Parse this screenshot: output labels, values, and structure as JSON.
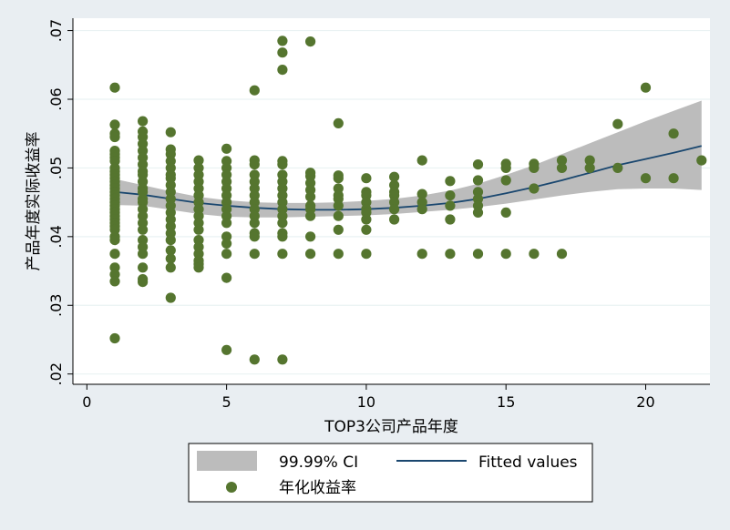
{
  "chart_data": {
    "type": "scatter",
    "xlabel": "TOP3公司产品年度",
    "ylabel": "产品年度实际收益率",
    "xlim": [
      -0.5,
      22.3
    ],
    "ylim": [
      0.0185,
      0.0718
    ],
    "x_ticks": [
      0,
      5,
      10,
      15,
      20
    ],
    "y_ticks": [
      0.02,
      0.03,
      0.04,
      0.05,
      0.06,
      0.07
    ],
    "y_tick_labels": [
      ".02",
      ".03",
      ".04",
      ".05",
      ".06",
      ".07"
    ],
    "grid": true,
    "legend_position": "bottom",
    "colors": {
      "ci_band": "#bcbcbc",
      "fit_line": "#1a476f",
      "points": "#55752f",
      "plot_bg": "#ffffff",
      "outer_bg": "#e9eef2"
    },
    "series": [
      {
        "name": "99.99% CI",
        "kind": "band",
        "x": [
          1,
          2,
          3,
          4,
          5,
          6,
          7,
          8,
          9,
          10,
          11,
          12,
          13,
          14,
          15,
          16,
          17,
          18,
          19,
          20,
          21,
          22
        ],
        "lower": [
          0.0446,
          0.0445,
          0.0439,
          0.0433,
          0.0429,
          0.0428,
          0.0428,
          0.0429,
          0.043,
          0.0431,
          0.0433,
          0.0436,
          0.0439,
          0.0443,
          0.0448,
          0.0454,
          0.046,
          0.0465,
          0.0469,
          0.047,
          0.047,
          0.0468
        ],
        "upper": [
          0.0484,
          0.0475,
          0.0466,
          0.0458,
          0.0453,
          0.045,
          0.0449,
          0.0449,
          0.045,
          0.0452,
          0.0455,
          0.046,
          0.0467,
          0.0477,
          0.049,
          0.0504,
          0.052,
          0.0536,
          0.0552,
          0.0568,
          0.0583,
          0.0598
        ]
      },
      {
        "name": "Fitted values",
        "kind": "line",
        "x": [
          1,
          2,
          3,
          4,
          5,
          6,
          7,
          8,
          9,
          10,
          11,
          12,
          13,
          14,
          15,
          16,
          17,
          18,
          19,
          20,
          21,
          22
        ],
        "y": [
          0.0465,
          0.0461,
          0.0455,
          0.0449,
          0.0445,
          0.0442,
          0.044,
          0.0439,
          0.0439,
          0.044,
          0.0442,
          0.0445,
          0.0449,
          0.0455,
          0.0463,
          0.0472,
          0.0482,
          0.0493,
          0.0504,
          0.0513,
          0.0522,
          0.0532
        ]
      },
      {
        "name": "年化收益率",
        "kind": "scatter",
        "points": [
          [
            1,
            0.0617
          ],
          [
            1,
            0.0563
          ],
          [
            1,
            0.055
          ],
          [
            1,
            0.0545
          ],
          [
            1,
            0.0525
          ],
          [
            1,
            0.052
          ],
          [
            1,
            0.0515
          ],
          [
            1,
            0.051
          ],
          [
            1,
            0.05
          ],
          [
            1,
            0.0495
          ],
          [
            1,
            0.049
          ],
          [
            1,
            0.0485
          ],
          [
            1,
            0.048
          ],
          [
            1,
            0.0475
          ],
          [
            1,
            0.047
          ],
          [
            1,
            0.0465
          ],
          [
            1,
            0.046
          ],
          [
            1,
            0.0455
          ],
          [
            1,
            0.045
          ],
          [
            1,
            0.0445
          ],
          [
            1,
            0.044
          ],
          [
            1,
            0.0435
          ],
          [
            1,
            0.043
          ],
          [
            1,
            0.0425
          ],
          [
            1,
            0.042
          ],
          [
            1,
            0.0415
          ],
          [
            1,
            0.041
          ],
          [
            1,
            0.04
          ],
          [
            1,
            0.0395
          ],
          [
            1,
            0.0375
          ],
          [
            1,
            0.0355
          ],
          [
            1,
            0.0345
          ],
          [
            1,
            0.0335
          ],
          [
            1,
            0.0252
          ],
          [
            2,
            0.0568
          ],
          [
            2,
            0.0553
          ],
          [
            2,
            0.0545
          ],
          [
            2,
            0.0535
          ],
          [
            2,
            0.0525
          ],
          [
            2,
            0.0515
          ],
          [
            2,
            0.0505
          ],
          [
            2,
            0.0495
          ],
          [
            2,
            0.049
          ],
          [
            2,
            0.048
          ],
          [
            2,
            0.047
          ],
          [
            2,
            0.0465
          ],
          [
            2,
            0.0455
          ],
          [
            2,
            0.045
          ],
          [
            2,
            0.044
          ],
          [
            2,
            0.043
          ],
          [
            2,
            0.042
          ],
          [
            2,
            0.041
          ],
          [
            2,
            0.0395
          ],
          [
            2,
            0.0385
          ],
          [
            2,
            0.0375
          ],
          [
            2,
            0.0355
          ],
          [
            2,
            0.0338
          ],
          [
            2,
            0.0334
          ],
          [
            3,
            0.0552
          ],
          [
            3,
            0.0527
          ],
          [
            3,
            0.052
          ],
          [
            3,
            0.051
          ],
          [
            3,
            0.05
          ],
          [
            3,
            0.049
          ],
          [
            3,
            0.0485
          ],
          [
            3,
            0.0475
          ],
          [
            3,
            0.0465
          ],
          [
            3,
            0.0455
          ],
          [
            3,
            0.0445
          ],
          [
            3,
            0.0435
          ],
          [
            3,
            0.0425
          ],
          [
            3,
            0.0415
          ],
          [
            3,
            0.0405
          ],
          [
            3,
            0.0395
          ],
          [
            3,
            0.038
          ],
          [
            3,
            0.0368
          ],
          [
            3,
            0.0355
          ],
          [
            3,
            0.0311
          ],
          [
            4,
            0.0511
          ],
          [
            4,
            0.05
          ],
          [
            4,
            0.049
          ],
          [
            4,
            0.048
          ],
          [
            4,
            0.047
          ],
          [
            4,
            0.046
          ],
          [
            4,
            0.045
          ],
          [
            4,
            0.044
          ],
          [
            4,
            0.043
          ],
          [
            4,
            0.042
          ],
          [
            4,
            0.041
          ],
          [
            4,
            0.0395
          ],
          [
            4,
            0.0385
          ],
          [
            4,
            0.0375
          ],
          [
            4,
            0.0365
          ],
          [
            4,
            0.036
          ],
          [
            4,
            0.0355
          ],
          [
            5,
            0.0528
          ],
          [
            5,
            0.051
          ],
          [
            5,
            0.05
          ],
          [
            5,
            0.049
          ],
          [
            5,
            0.048
          ],
          [
            5,
            0.047
          ],
          [
            5,
            0.046
          ],
          [
            5,
            0.045
          ],
          [
            5,
            0.044
          ],
          [
            5,
            0.043
          ],
          [
            5,
            0.042
          ],
          [
            5,
            0.04
          ],
          [
            5,
            0.039
          ],
          [
            5,
            0.0375
          ],
          [
            5,
            0.034
          ],
          [
            5,
            0.0235
          ],
          [
            6,
            0.0613
          ],
          [
            6,
            0.0511
          ],
          [
            6,
            0.0505
          ],
          [
            6,
            0.049
          ],
          [
            6,
            0.048
          ],
          [
            6,
            0.047
          ],
          [
            6,
            0.046
          ],
          [
            6,
            0.045
          ],
          [
            6,
            0.044
          ],
          [
            6,
            0.043
          ],
          [
            6,
            0.042
          ],
          [
            6,
            0.0405
          ],
          [
            6,
            0.04
          ],
          [
            6,
            0.0375
          ],
          [
            6,
            0.0221
          ],
          [
            7,
            0.0685
          ],
          [
            7,
            0.0668
          ],
          [
            7,
            0.0643
          ],
          [
            7,
            0.051
          ],
          [
            7,
            0.0505
          ],
          [
            7,
            0.049
          ],
          [
            7,
            0.048
          ],
          [
            7,
            0.047
          ],
          [
            7,
            0.046
          ],
          [
            7,
            0.045
          ],
          [
            7,
            0.044
          ],
          [
            7,
            0.043
          ],
          [
            7,
            0.042
          ],
          [
            7,
            0.0405
          ],
          [
            7,
            0.04
          ],
          [
            7,
            0.0375
          ],
          [
            7,
            0.0221
          ],
          [
            8,
            0.0684
          ],
          [
            8,
            0.0493
          ],
          [
            8,
            0.0488
          ],
          [
            8,
            0.0478
          ],
          [
            8,
            0.0468
          ],
          [
            8,
            0.0458
          ],
          [
            8,
            0.0445
          ],
          [
            8,
            0.044
          ],
          [
            8,
            0.043
          ],
          [
            8,
            0.04
          ],
          [
            8,
            0.0375
          ],
          [
            9,
            0.0565
          ],
          [
            9,
            0.0489
          ],
          [
            9,
            0.0485
          ],
          [
            9,
            0.047
          ],
          [
            9,
            0.046
          ],
          [
            9,
            0.0455
          ],
          [
            9,
            0.0445
          ],
          [
            9,
            0.043
          ],
          [
            9,
            0.041
          ],
          [
            9,
            0.0375
          ],
          [
            10,
            0.0485
          ],
          [
            10,
            0.0465
          ],
          [
            10,
            0.046
          ],
          [
            10,
            0.045
          ],
          [
            10,
            0.044
          ],
          [
            10,
            0.0435
          ],
          [
            10,
            0.0425
          ],
          [
            10,
            0.041
          ],
          [
            10,
            0.0375
          ],
          [
            11,
            0.0487
          ],
          [
            11,
            0.0475
          ],
          [
            11,
            0.0465
          ],
          [
            11,
            0.046
          ],
          [
            11,
            0.045
          ],
          [
            11,
            0.044
          ],
          [
            11,
            0.0425
          ],
          [
            12,
            0.0511
          ],
          [
            12,
            0.0462
          ],
          [
            12,
            0.045
          ],
          [
            12,
            0.044
          ],
          [
            12,
            0.0375
          ],
          [
            13,
            0.0481
          ],
          [
            13,
            0.046
          ],
          [
            13,
            0.0445
          ],
          [
            13,
            0.0425
          ],
          [
            13,
            0.0375
          ],
          [
            14,
            0.0505
          ],
          [
            14,
            0.0482
          ],
          [
            14,
            0.0465
          ],
          [
            14,
            0.0455
          ],
          [
            14,
            0.0445
          ],
          [
            14,
            0.0435
          ],
          [
            14,
            0.0375
          ],
          [
            15,
            0.0506
          ],
          [
            15,
            0.05
          ],
          [
            15,
            0.0482
          ],
          [
            15,
            0.0435
          ],
          [
            15,
            0.0375
          ],
          [
            16,
            0.0506
          ],
          [
            16,
            0.05
          ],
          [
            16,
            0.047
          ],
          [
            16,
            0.0375
          ],
          [
            17,
            0.0511
          ],
          [
            17,
            0.05
          ],
          [
            17,
            0.0375
          ],
          [
            18,
            0.0511
          ],
          [
            18,
            0.05
          ],
          [
            19,
            0.0564
          ],
          [
            19,
            0.05
          ],
          [
            20,
            0.0617
          ],
          [
            20,
            0.0485
          ],
          [
            21,
            0.055
          ],
          [
            21,
            0.0485
          ],
          [
            22,
            0.0511
          ]
        ]
      }
    ]
  }
}
